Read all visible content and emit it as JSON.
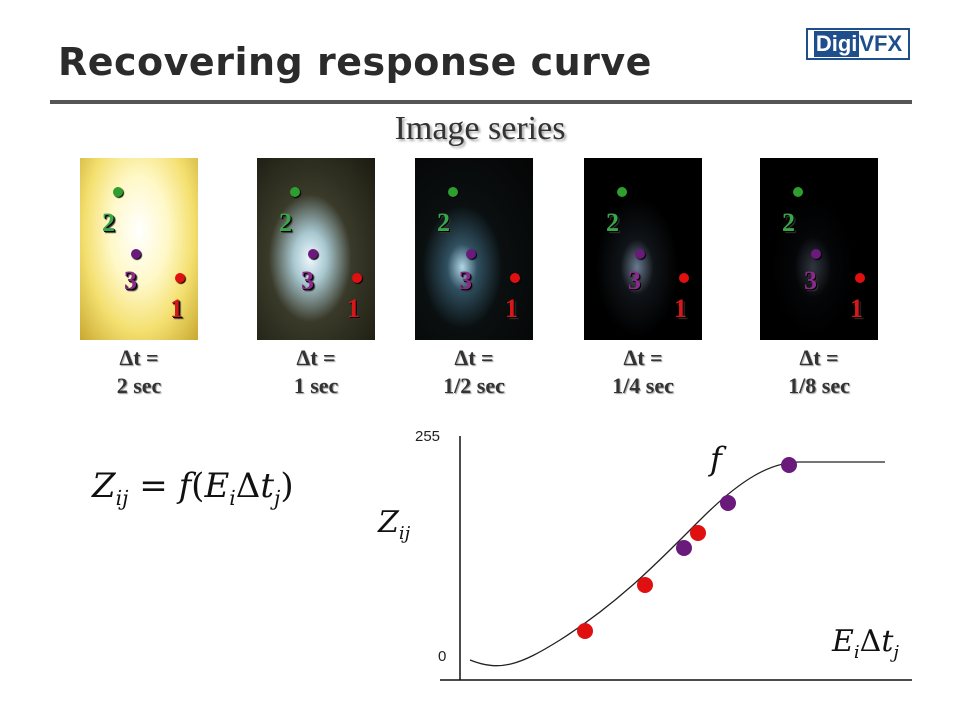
{
  "header": {
    "title": "Recovering response curve",
    "logo_text_a": "Digi",
    "logo_text_b": "VFX"
  },
  "section_title": "Image series",
  "images": [
    {
      "caption_line1": "Δt =",
      "caption_line2": "2 sec"
    },
    {
      "caption_line1": "Δt =",
      "caption_line2": "1 sec"
    },
    {
      "caption_line1": "Δt =",
      "caption_line2": "1/2 sec"
    },
    {
      "caption_line1": "Δt =",
      "caption_line2": "1/4 sec"
    },
    {
      "caption_line1": "Δt =",
      "caption_line2": "1/8 sec"
    }
  ],
  "point_labels": [
    "1",
    "2",
    "3"
  ],
  "formula": {
    "lhs": "Z",
    "lhs_sub": "ij",
    "eq": " = ",
    "f": "f",
    "open": "(",
    "E": "E",
    "E_sub": "i",
    "delta": "Δ",
    "t": "t",
    "t_sub": "j",
    "close": ")"
  },
  "graph": {
    "y_axis_label": "Z",
    "y_axis_label_sub": "ij",
    "x_axis_label": "E",
    "x_axis_label_sub": "i",
    "x_axis_delta": "Δ",
    "x_axis_t": "t",
    "x_axis_t_sub": "j",
    "curve_label": "f",
    "y_tick_top": "255",
    "y_tick_bottom": "0"
  },
  "colors": {
    "point_green": "#2e9e2e",
    "point_purple": "#6a1a7a",
    "point_red": "#e01010",
    "label_green": "#3aa64a",
    "label_purple": "#8a2a8a",
    "label_red": "#d81818"
  }
}
